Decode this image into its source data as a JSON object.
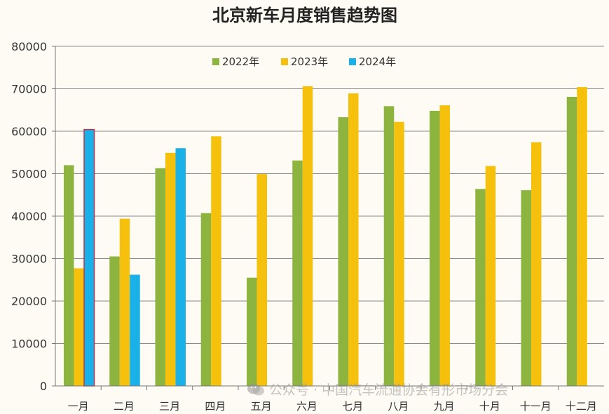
{
  "chart_data": {
    "type": "bar",
    "title": "北京新车月度销售趋势图",
    "xlabel": "",
    "ylabel": "",
    "categories": [
      "一月",
      "二月",
      "三月",
      "四月",
      "五月",
      "六月",
      "七月",
      "八月",
      "九月",
      "十月",
      "十一月",
      "十二月"
    ],
    "series": [
      {
        "name": "2022年",
        "color": "#8cb43f",
        "values": [
          52000,
          30500,
          51300,
          40700,
          25500,
          53100,
          63300,
          65900,
          64800,
          46400,
          46100,
          68100
        ]
      },
      {
        "name": "2023年",
        "color": "#f6c10d",
        "values": [
          27700,
          39400,
          54900,
          58800,
          49900,
          70600,
          68900,
          62200,
          66100,
          51800,
          57400,
          70400
        ]
      },
      {
        "name": "2024年",
        "color": "#1ab0e8",
        "values": [
          60400,
          26200,
          56000,
          null,
          null,
          null,
          null,
          null,
          null,
          null,
          null,
          null
        ]
      }
    ],
    "ylim": [
      0,
      80000
    ],
    "yticks": [
      0,
      10000,
      20000,
      30000,
      40000,
      50000,
      60000,
      70000,
      80000
    ],
    "grid": true,
    "legend": "top-center"
  },
  "watermark": {
    "text": "公众号 · 中国汽车流通协会有形市场分会",
    "icon": "wechat-icon"
  }
}
